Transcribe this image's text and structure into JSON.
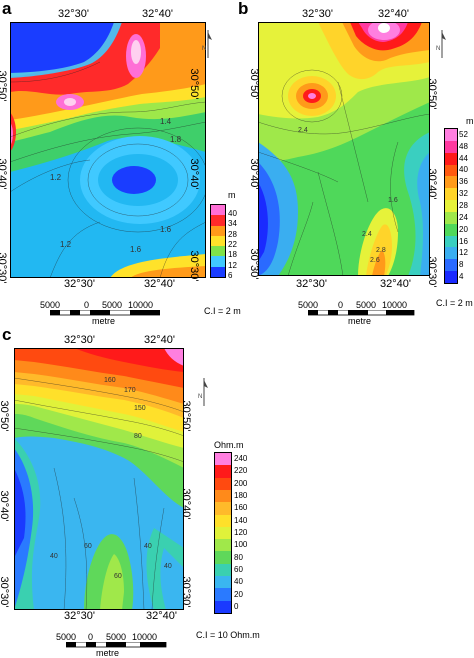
{
  "panels": [
    {
      "label": "a",
      "top_coords": [
        "32°30'",
        "32°40'"
      ],
      "bottom_coords": [
        "32°30'",
        "32°40'"
      ],
      "left_coords": [
        "30°50'",
        "30°40'",
        "30°30'"
      ],
      "right_coords": [
        "30°50'",
        "30°40'",
        "30°30'"
      ],
      "legend_unit": "m",
      "legend_ticks": [
        "40",
        "34",
        "28",
        "22",
        "18",
        "12",
        "6"
      ],
      "legend_colors": [
        "#ff6fd6",
        "#ff2a2a",
        "#ff9a1a",
        "#ffe22a",
        "#7fe24a",
        "#40c9ff",
        "#1a3dff"
      ],
      "scale_ticks": [
        "5000",
        "0",
        "5000",
        "10000"
      ],
      "scale_unit": "metre",
      "ci": "C.I = 2 m",
      "contour_labels": [
        "1.4",
        "1.2",
        "1.6",
        "1.8",
        "1.2",
        "1.6"
      ]
    },
    {
      "label": "b",
      "top_coords": [
        "32°30'",
        "32°40'"
      ],
      "bottom_coords": [
        "32°30'",
        "32°40'"
      ],
      "left_coords": [
        "30°50'",
        "30°40'",
        "30°30'"
      ],
      "right_coords": [
        "30°50'",
        "30°40'",
        "30°30'"
      ],
      "legend_unit": "m",
      "legend_ticks": [
        "52",
        "48",
        "44",
        "40",
        "36",
        "32",
        "28",
        "24",
        "20",
        "16",
        "12",
        "8",
        "4"
      ],
      "legend_colors": [
        "#ff7fe0",
        "#ff3aa0",
        "#ff1a1a",
        "#ff5a10",
        "#ff9a1a",
        "#ffd42a",
        "#e6f23a",
        "#9fe84a",
        "#4fd85a",
        "#3acfc0",
        "#3aaef0",
        "#2a6aff",
        "#1a2aff"
      ],
      "scale_ticks": [
        "5000",
        "0",
        "5000",
        "10000"
      ],
      "scale_unit": "metre",
      "ci": "C.I = 2 m",
      "contour_labels": [
        "2.4",
        "2.8",
        "2.6",
        "2.4",
        "1.6"
      ]
    },
    {
      "label": "c",
      "top_coords": [
        "32°30'",
        "32°40'"
      ],
      "bottom_coords": [
        "32°30'",
        "32°40'"
      ],
      "left_coords": [
        "30°50'",
        "30°40'",
        "30°30'"
      ],
      "right_coords": [
        "30°50'",
        "30°40'",
        "30°30'"
      ],
      "legend_unit": "Ohm.m",
      "legend_ticks": [
        "240",
        "220",
        "200",
        "180",
        "160",
        "140",
        "120",
        "100",
        "80",
        "60",
        "40",
        "20",
        "0"
      ],
      "legend_colors": [
        "#ff7fe0",
        "#ff1a1a",
        "#ff4a10",
        "#ff8a1a",
        "#ffba2a",
        "#ffe02a",
        "#e0f23a",
        "#a0e84a",
        "#5fd85a",
        "#3ad0b0",
        "#3ab6f0",
        "#2a7aff",
        "#1a3aff"
      ],
      "scale_ticks": [
        "5000",
        "0",
        "5000",
        "10000"
      ],
      "scale_unit": "metre",
      "ci": "C.I = 10 Ohm.m",
      "contour_labels": [
        "160",
        "170",
        "150",
        "80",
        "60",
        "40",
        "60",
        "40",
        "40"
      ]
    }
  ]
}
